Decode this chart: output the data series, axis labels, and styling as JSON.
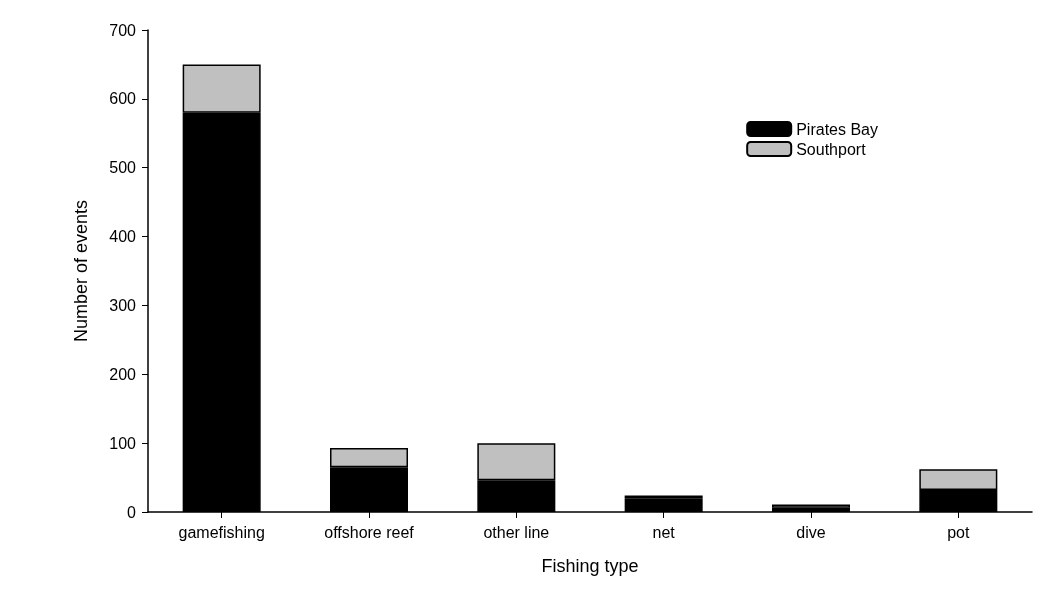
{
  "chart_data": {
    "type": "bar",
    "stacked": true,
    "xlabel": "Fishing type",
    "ylabel": "Number of events",
    "categories": [
      "gamefishing",
      "offshore reef",
      "other line",
      "net",
      "dive",
      "pot"
    ],
    "series": [
      {
        "name": "Pirates Bay",
        "color": "#000000",
        "values": [
          580,
          65,
          46,
          20,
          6,
          32
        ]
      },
      {
        "name": "Southport",
        "color": "#c0c0c0",
        "values": [
          70,
          28,
          54,
          4,
          5,
          30
        ]
      }
    ],
    "ylim": [
      0,
      700
    ],
    "yticks": [
      0,
      100,
      200,
      300,
      400,
      500,
      600,
      700
    ],
    "grid": false,
    "legend": "top right"
  }
}
